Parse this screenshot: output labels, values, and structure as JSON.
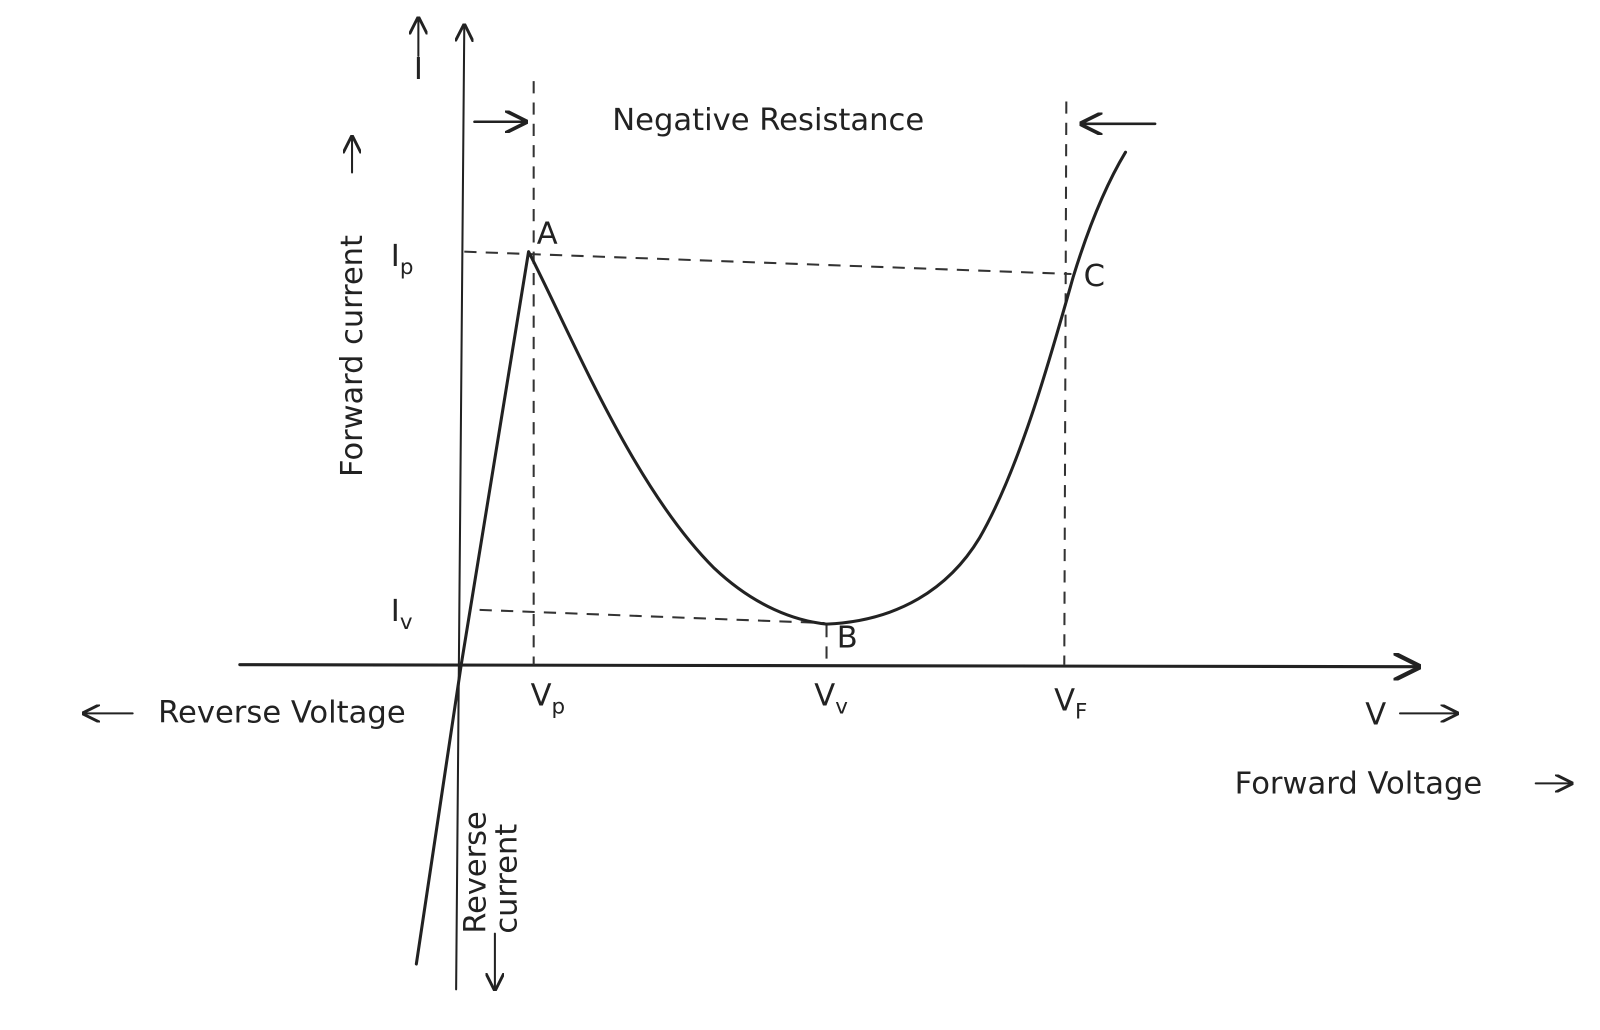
{
  "diagram": {
    "current_symbol": "I",
    "region_label": "Negative Resistance",
    "forward_current": "Forward current",
    "peak_current": {
      "main": "I",
      "sub": "p"
    },
    "valley_current": {
      "main": "I",
      "sub": "v"
    },
    "points": [
      "A",
      "B",
      "C"
    ],
    "peak_voltage": {
      "main": "V",
      "sub": "p"
    },
    "valley_voltage": {
      "main": "V",
      "sub": "v"
    },
    "forward_voltage_point": {
      "main": "V",
      "sub": "F"
    },
    "reverse_voltage": "Reverse Voltage",
    "voltage_symbol": "V",
    "forward_voltage": "Forward Voltage",
    "reverse_current": [
      "Reverse",
      "current"
    ]
  }
}
